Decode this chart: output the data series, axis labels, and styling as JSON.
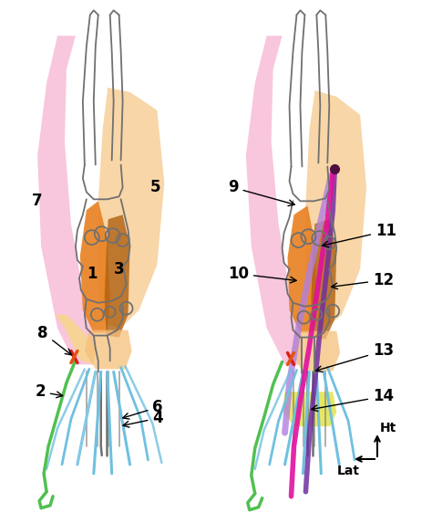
{
  "background_color": "#ffffff",
  "figsize": [
    4.74,
    5.73
  ],
  "dpi": 100,
  "pink_color": "#f5a8cc",
  "light_orange_color": "#f5c07a",
  "orange_color": "#e88020",
  "dark_orange_color": "#b06010",
  "blue_color": "#70c0e0",
  "green_color": "#50c050",
  "red_color": "#d82010",
  "orange_red_color": "#e85010",
  "yellow_color": "#e0e040",
  "purple_color": "#7030a0",
  "dark_purple_color": "#501040",
  "magenta_color": "#e010a0",
  "lilac_color": "#b080e0",
  "bone_color": "#707070",
  "compass_ht": "Ht",
  "compass_lat": "Lat"
}
